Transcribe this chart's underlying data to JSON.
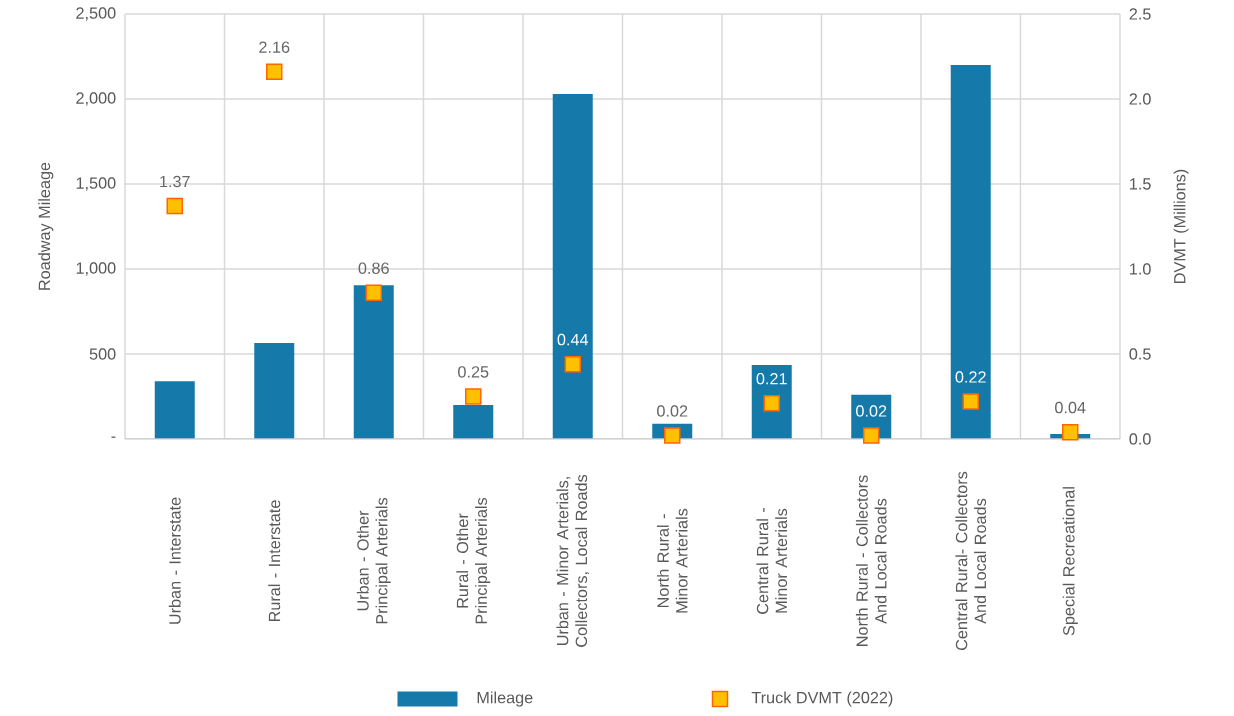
{
  "chart_data": {
    "type": "bar",
    "ylabel": "Roadway Mileage",
    "y2label": "DVMT (Millions)",
    "categories": [
      "Urban - Interstate",
      "Rural - Interstate",
      "Urban - Other Principal Arterials",
      "Rural - Other Principal Arterials",
      "Urban - Minor Arterials, Collectors, Local Roads",
      "North Rural - Minor Arterials",
      "Central Rural - Minor Arterials",
      "North Rural - Collectors And Local Roads",
      "Central Rural- Collectors And Local Roads",
      "Special Recreational"
    ],
    "series": [
      {
        "name": "Mileage",
        "type": "bar",
        "color": "#157aa9",
        "values": [
          340,
          565,
          905,
          200,
          2030,
          90,
          435,
          260,
          2200,
          30
        ]
      },
      {
        "name": "Truck DVMT (2022)",
        "type": "scatter",
        "axis": "y2",
        "marker": "square",
        "color": "#ffc000",
        "values": [
          1.37,
          2.16,
          0.86,
          0.25,
          0.44,
          0.02,
          0.21,
          0.02,
          0.22,
          0.04
        ],
        "data_labels": true
      }
    ],
    "ylim": [
      0,
      2500
    ],
    "yticks": [
      {
        "value": 0,
        "label": "-"
      },
      500,
      {
        "value": 1000,
        "label": "1,000"
      },
      {
        "value": 1500,
        "label": "1,500"
      },
      {
        "value": 2000,
        "label": "2,000"
      },
      {
        "value": 2500,
        "label": "2,500"
      }
    ],
    "y2lim": [
      0,
      2.5
    ],
    "y2ticks": [
      {
        "value": 0,
        "label": "0.0"
      },
      {
        "value": 0.5,
        "label": "0.5"
      },
      {
        "value": 1,
        "label": "1.0"
      },
      {
        "value": 1.5,
        "label": "1.5"
      },
      {
        "value": 2,
        "label": "2.0"
      },
      {
        "value": 2.5,
        "label": "2.5"
      }
    ],
    "grid": true,
    "legend": "bottom"
  }
}
